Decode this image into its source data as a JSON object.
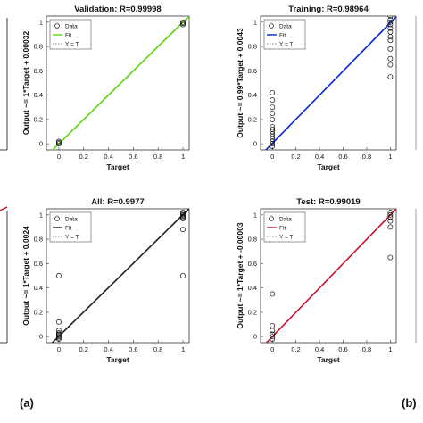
{
  "figure": {
    "label_a": "(a)",
    "label_b": "(b)"
  },
  "chart_data": [
    {
      "id": "a-validation",
      "type": "scatter",
      "title": "Validation: R=0.99998",
      "xlabel": "Target",
      "ylabel": "Output ~= 1*Target + 0.00032",
      "xlim": [
        -0.1,
        1.05
      ],
      "ylim": [
        -0.05,
        1.05
      ],
      "xticks": [
        "0",
        "0.2",
        "0.4",
        "0.6",
        "0.8",
        "1"
      ],
      "xtick_values": [
        0,
        0.2,
        0.4,
        0.6,
        0.8,
        1
      ],
      "yticks": [
        "0",
        "0.2",
        "0.4",
        "0.6",
        "0.8",
        "1"
      ],
      "ytick_values": [
        0,
        0.2,
        0.4,
        0.6,
        0.8,
        1
      ],
      "legend": [
        "Data",
        "Fit",
        "Y = T"
      ],
      "legend_position": "top-left",
      "fit": {
        "slope": 1,
        "intercept": 0.00032,
        "color": "#5ad60a"
      },
      "points": [
        [
          0,
          0.0
        ],
        [
          0,
          0.01
        ],
        [
          0,
          0.02
        ],
        [
          1,
          0.98
        ],
        [
          1,
          0.99
        ],
        [
          1,
          1.0
        ]
      ]
    },
    {
      "id": "a-all",
      "type": "scatter",
      "title": "All: R=0.9977",
      "xlabel": "Target",
      "ylabel": "Output ~= 1*Target + 0.0024",
      "xlim": [
        -0.1,
        1.05
      ],
      "ylim": [
        -0.05,
        1.05
      ],
      "xticks": [
        "0",
        "0.2",
        "0.4",
        "0.6",
        "0.8",
        "1"
      ],
      "xtick_values": [
        0,
        0.2,
        0.4,
        0.6,
        0.8,
        1
      ],
      "yticks": [
        "0",
        "0.2",
        "0.4",
        "0.6",
        "0.8",
        "1"
      ],
      "ytick_values": [
        0,
        0.2,
        0.4,
        0.6,
        0.8,
        1
      ],
      "legend": [
        "Data",
        "Fit",
        "Y = T"
      ],
      "legend_position": "top-left",
      "fit": {
        "slope": 1,
        "intercept": 0.0024,
        "color": "#222222"
      },
      "points": [
        [
          0,
          -0.02
        ],
        [
          0,
          -0.01
        ],
        [
          0,
          0.0
        ],
        [
          0,
          0.01
        ],
        [
          0,
          0.02
        ],
        [
          0,
          0.03
        ],
        [
          0,
          0.05
        ],
        [
          0,
          0.12
        ],
        [
          0,
          0.5
        ],
        [
          1,
          0.5
        ],
        [
          1,
          0.88
        ],
        [
          1,
          0.97
        ],
        [
          1,
          0.98
        ],
        [
          1,
          0.99
        ],
        [
          1,
          1.0
        ],
        [
          1,
          1.01
        ],
        [
          1,
          1.02
        ]
      ]
    },
    {
      "id": "b-training",
      "type": "scatter",
      "title": "Training: R=0.98964",
      "xlabel": "Target",
      "ylabel": "Output ~= 0.99*Target + 0.0043",
      "xlim": [
        -0.1,
        1.05
      ],
      "ylim": [
        -0.05,
        1.05
      ],
      "xticks": [
        "0",
        "0.2",
        "0.4",
        "0.6",
        "0.8",
        "1"
      ],
      "xtick_values": [
        0,
        0.2,
        0.4,
        0.6,
        0.8,
        1
      ],
      "yticks": [
        "0",
        "0.2",
        "0.4",
        "0.6",
        "0.8",
        "1"
      ],
      "ytick_values": [
        0,
        0.2,
        0.4,
        0.6,
        0.8,
        1
      ],
      "legend": [
        "Data",
        "Fit",
        "Y = T"
      ],
      "legend_position": "top-left",
      "fit": {
        "slope": 0.99,
        "intercept": 0.0043,
        "color": "#0a2ad6"
      },
      "points": [
        [
          0,
          -0.02
        ],
        [
          0,
          0.0
        ],
        [
          0,
          0.02
        ],
        [
          0,
          0.04
        ],
        [
          0,
          0.06
        ],
        [
          0,
          0.08
        ],
        [
          0,
          0.1
        ],
        [
          0,
          0.12
        ],
        [
          0,
          0.14
        ],
        [
          0,
          0.2
        ],
        [
          0,
          0.25
        ],
        [
          0,
          0.3
        ],
        [
          0,
          0.36
        ],
        [
          0,
          0.42
        ],
        [
          1,
          0.55
        ],
        [
          1,
          0.65
        ],
        [
          1,
          0.7
        ],
        [
          1,
          0.78
        ],
        [
          1,
          0.85
        ],
        [
          1,
          0.88
        ],
        [
          1,
          0.92
        ],
        [
          1,
          0.95
        ],
        [
          1,
          0.98
        ],
        [
          1,
          1.0
        ],
        [
          1,
          1.02
        ],
        [
          1,
          1.05
        ]
      ]
    },
    {
      "id": "b-test",
      "type": "scatter",
      "title": "Test: R=0.99019",
      "xlabel": "Target",
      "ylabel": "Output ~= 1*Target + -0.00003",
      "xlim": [
        -0.1,
        1.05
      ],
      "ylim": [
        -0.05,
        1.05
      ],
      "xticks": [
        "0",
        "0.2",
        "0.4",
        "0.6",
        "0.8",
        "1"
      ],
      "xtick_values": [
        0,
        0.2,
        0.4,
        0.6,
        0.8,
        1
      ],
      "yticks": [
        "0",
        "0.2",
        "0.4",
        "0.6",
        "0.8",
        "1"
      ],
      "ytick_values": [
        0,
        0.2,
        0.4,
        0.6,
        0.8,
        1
      ],
      "legend": [
        "Data",
        "Fit",
        "Y = T"
      ],
      "legend_position": "top-left",
      "fit": {
        "slope": 1,
        "intercept": -3e-05,
        "color": "#c8102e"
      },
      "points": [
        [
          0,
          -0.02
        ],
        [
          0,
          0.0
        ],
        [
          0,
          0.02
        ],
        [
          0,
          0.05
        ],
        [
          0,
          0.09
        ],
        [
          0,
          0.35
        ],
        [
          1,
          0.65
        ],
        [
          1,
          0.9
        ],
        [
          1,
          0.95
        ],
        [
          1,
          0.98
        ],
        [
          1,
          1.0
        ],
        [
          1,
          1.02
        ]
      ]
    }
  ]
}
